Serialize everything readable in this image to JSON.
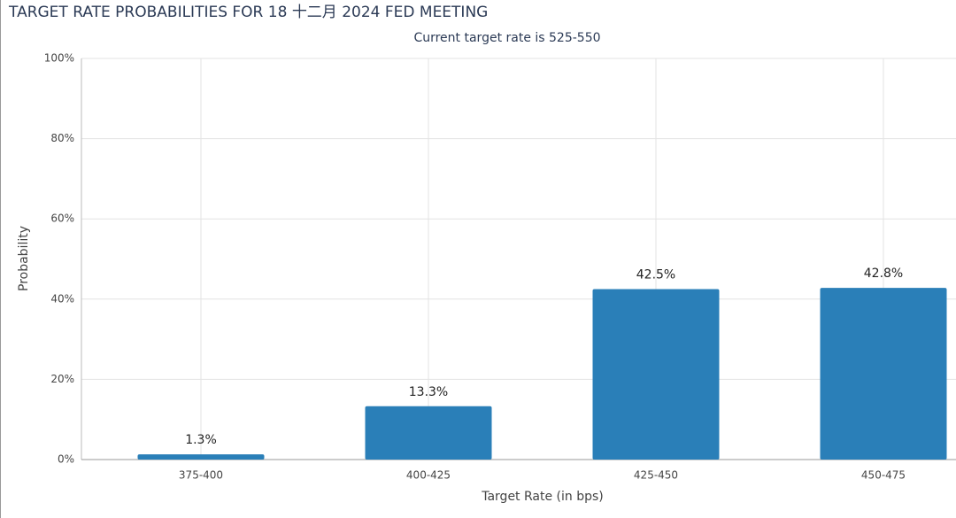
{
  "chart_data": {
    "type": "bar",
    "title": "TARGET RATE PROBABILITIES FOR 18 十二月 2024 FED MEETING",
    "subtitle": "Current target rate is 525-550",
    "x_label": "Target Rate (in bps)",
    "y_label": "Probability",
    "categories": [
      "375-400",
      "400-425",
      "425-450",
      "450-475"
    ],
    "values": [
      1.3,
      13.3,
      42.5,
      42.8
    ],
    "value_labels": [
      "1.3%",
      "13.3%",
      "42.5%",
      "42.8%"
    ],
    "color": "#2a7fb8",
    "ylim": [
      0,
      100
    ],
    "yticks": [
      {
        "value": 0,
        "label": "0%"
      },
      {
        "value": 20,
        "label": "20%"
      },
      {
        "value": 40,
        "label": "40%"
      },
      {
        "value": 60,
        "label": "60%"
      },
      {
        "value": 80,
        "label": "80%"
      },
      {
        "value": 100,
        "label": "100%"
      }
    ],
    "grid": true
  }
}
